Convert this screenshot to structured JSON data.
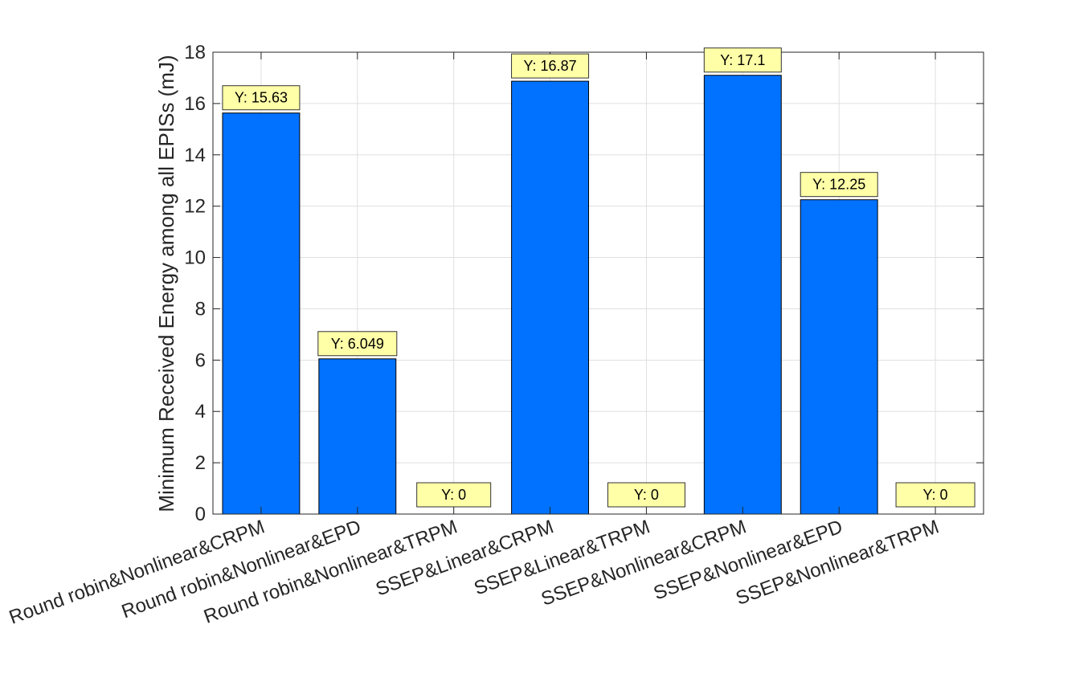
{
  "chart_data": {
    "type": "bar",
    "title": "",
    "xlabel": "",
    "ylabel": "Minimum Received Energy among all EPISs (mJ)",
    "ylim": [
      0,
      18
    ],
    "yticks": [
      0,
      2,
      4,
      6,
      8,
      10,
      12,
      14,
      16,
      18
    ],
    "grid": true,
    "categories": [
      "Round robin&Nonlinear&CRPM",
      "Round robin&Nonlinear&EPD",
      "Round robin&Nonlinear&TRPM",
      "SSEP&Linear&CRPM",
      "SSEP&Linear&TRPM",
      "SSEP&Nonlinear&CRPM",
      "SSEP&Nonlinear&EPD",
      "SSEP&Nonlinear&TRPM"
    ],
    "values": [
      15.63,
      6.049,
      0,
      16.87,
      0,
      17.1,
      12.25,
      0
    ],
    "data_labels": [
      "Y: 15.63",
      "Y: 6.049",
      "Y: 0",
      "Y: 16.87",
      "Y: 0",
      "Y: 17.1",
      "Y: 12.25",
      "Y: 0"
    ]
  },
  "colors": {
    "bar_fill": "#0072FF",
    "bar_edge": "#000000",
    "grid": "#DFDFDF",
    "axis": "#262626",
    "datatip_fill": "#FFFFA8",
    "datatip_edge": "#333333"
  }
}
